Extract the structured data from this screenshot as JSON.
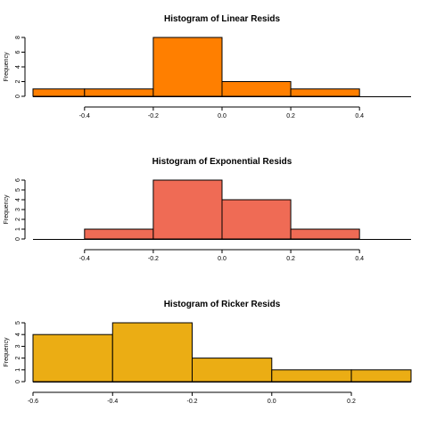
{
  "chart_data": [
    {
      "type": "bar",
      "title": "Histogram of Linear Resids",
      "ylabel": "Frequency",
      "xlabel": "",
      "color": "#ff7f00",
      "xlim": [
        -0.55,
        0.55
      ],
      "ylim": [
        0,
        8
      ],
      "bins": [
        {
          "from": -0.6,
          "to": -0.4,
          "count": 1
        },
        {
          "from": -0.4,
          "to": -0.2,
          "count": 1
        },
        {
          "from": -0.2,
          "to": 0.0,
          "count": 8
        },
        {
          "from": 0.0,
          "to": 0.2,
          "count": 2
        },
        {
          "from": 0.2,
          "to": 0.4,
          "count": 1
        }
      ],
      "x_ticks": [
        {
          "value": -0.4,
          "label": "-0.4"
        },
        {
          "value": -0.2,
          "label": "-0.2"
        },
        {
          "value": 0.0,
          "label": "0.0"
        },
        {
          "value": 0.2,
          "label": "0.2"
        },
        {
          "value": 0.4,
          "label": "0.4"
        }
      ],
      "y_ticks": [
        {
          "value": 0,
          "label": "0"
        },
        {
          "value": 2,
          "label": "2"
        },
        {
          "value": 4,
          "label": "4"
        },
        {
          "value": 6,
          "label": "6"
        },
        {
          "value": 8,
          "label": "8"
        }
      ]
    },
    {
      "type": "bar",
      "title": "Histogram of Exponential Resids",
      "ylabel": "Frequency",
      "xlabel": "",
      "color": "#ef6b55",
      "xlim": [
        -0.55,
        0.55
      ],
      "ylim": [
        0,
        6
      ],
      "bins": [
        {
          "from": -0.4,
          "to": -0.2,
          "count": 1
        },
        {
          "from": -0.2,
          "to": 0.0,
          "count": 6
        },
        {
          "from": 0.0,
          "to": 0.2,
          "count": 4
        },
        {
          "from": 0.2,
          "to": 0.4,
          "count": 1
        }
      ],
      "x_ticks": [
        {
          "value": -0.4,
          "label": "-0.4"
        },
        {
          "value": -0.2,
          "label": "-0.2"
        },
        {
          "value": 0.0,
          "label": "0.0"
        },
        {
          "value": 0.2,
          "label": "0.2"
        },
        {
          "value": 0.4,
          "label": "0.4"
        }
      ],
      "y_ticks": [
        {
          "value": 0,
          "label": "0"
        },
        {
          "value": 1,
          "label": "1"
        },
        {
          "value": 2,
          "label": "2"
        },
        {
          "value": 3,
          "label": "3"
        },
        {
          "value": 4,
          "label": "4"
        },
        {
          "value": 5,
          "label": "5"
        },
        {
          "value": 6,
          "label": "6"
        }
      ]
    },
    {
      "type": "bar",
      "title": "Histogram of Ricker Resids",
      "ylabel": "Frequency",
      "xlabel": "",
      "color": "#ebad14",
      "xlim": [
        -0.6,
        0.35
      ],
      "ylim": [
        0,
        5
      ],
      "bins": [
        {
          "from": -0.6,
          "to": -0.4,
          "count": 4
        },
        {
          "from": -0.4,
          "to": -0.2,
          "count": 5
        },
        {
          "from": -0.2,
          "to": 0.0,
          "count": 2
        },
        {
          "from": 0.0,
          "to": 0.2,
          "count": 1
        },
        {
          "from": 0.2,
          "to": 0.4,
          "count": 1
        }
      ],
      "x_ticks": [
        {
          "value": -0.6,
          "label": "-0.6"
        },
        {
          "value": -0.4,
          "label": "-0.4"
        },
        {
          "value": -0.2,
          "label": "-0.2"
        },
        {
          "value": 0.0,
          "label": "0.0"
        },
        {
          "value": 0.2,
          "label": "0.2"
        }
      ],
      "y_ticks": [
        {
          "value": 0,
          "label": "0"
        },
        {
          "value": 1,
          "label": "1"
        },
        {
          "value": 2,
          "label": "2"
        },
        {
          "value": 3,
          "label": "3"
        },
        {
          "value": 4,
          "label": "4"
        },
        {
          "value": 5,
          "label": "5"
        }
      ]
    }
  ]
}
